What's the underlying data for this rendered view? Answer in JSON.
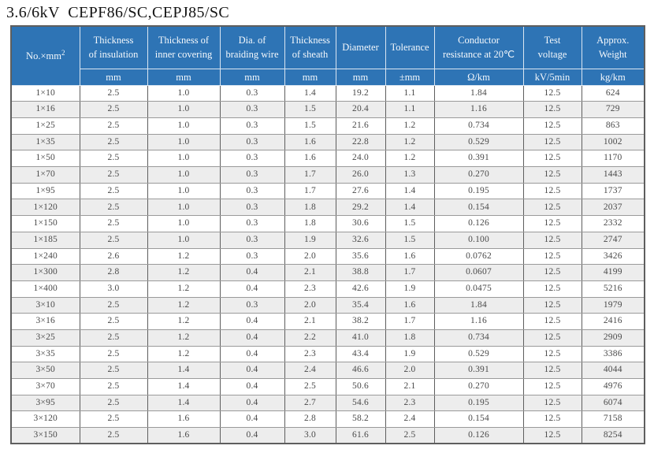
{
  "page_title": "3.6/6kV  CEPF86/SC,CEPJ85/SC",
  "colors": {
    "header_bg": "#2e74b5",
    "header_text": "#f4f8fc",
    "stripe_bg": "#ededed",
    "row_bg": "#ffffff",
    "body_text": "#4a4a4a",
    "title_text": "#141414",
    "border_dark": "#5e5e5e",
    "border_light": "#9a9a9a"
  },
  "table": {
    "no_header": {
      "base": "No.×mm",
      "sup": "2"
    },
    "columns": [
      "Thickness\nof insulation",
      "Thickness of\ninner covering",
      "Dia. of\nbraiding wire",
      "Thickness\nof sheath",
      "Diameter",
      "Tolerance",
      "Conductor\nresistance at 20℃",
      "Test\nvoltage",
      "Approx.\nWeight"
    ],
    "units": [
      "mm",
      "mm",
      "mm",
      "mm",
      "mm",
      "±mm",
      "Ω/km",
      "kV/5min",
      "kg/km"
    ],
    "rows": [
      [
        "1×10",
        "2.5",
        "1.0",
        "0.3",
        "1.4",
        "19.2",
        "1.1",
        "1.84",
        "12.5",
        "624"
      ],
      [
        "1×16",
        "2.5",
        "1.0",
        "0.3",
        "1.5",
        "20.4",
        "1.1",
        "1.16",
        "12.5",
        "729"
      ],
      [
        "1×25",
        "2.5",
        "1.0",
        "0.3",
        "1.5",
        "21.6",
        "1.2",
        "0.734",
        "12.5",
        "863"
      ],
      [
        "1×35",
        "2.5",
        "1.0",
        "0.3",
        "1.6",
        "22.8",
        "1.2",
        "0.529",
        "12.5",
        "1002"
      ],
      [
        "1×50",
        "2.5",
        "1.0",
        "0.3",
        "1.6",
        "24.0",
        "1.2",
        "0.391",
        "12.5",
        "1170"
      ],
      [
        "1×70",
        "2.5",
        "1.0",
        "0.3",
        "1.7",
        "26.0",
        "1.3",
        "0.270",
        "12.5",
        "1443"
      ],
      [
        "1×95",
        "2.5",
        "1.0",
        "0.3",
        "1.7",
        "27.6",
        "1.4",
        "0.195",
        "12.5",
        "1737"
      ],
      [
        "1×120",
        "2.5",
        "1.0",
        "0.3",
        "1.8",
        "29.2",
        "1.4",
        "0.154",
        "12.5",
        "2037"
      ],
      [
        "1×150",
        "2.5",
        "1.0",
        "0.3",
        "1.8",
        "30.6",
        "1.5",
        "0.126",
        "12.5",
        "2332"
      ],
      [
        "1×185",
        "2.5",
        "1.0",
        "0.3",
        "1.9",
        "32.6",
        "1.5",
        "0.100",
        "12.5",
        "2747"
      ],
      [
        "1×240",
        "2.6",
        "1.2",
        "0.3",
        "2.0",
        "35.6",
        "1.6",
        "0.0762",
        "12.5",
        "3426"
      ],
      [
        "1×300",
        "2.8",
        "1.2",
        "0.4",
        "2.1",
        "38.8",
        "1.7",
        "0.0607",
        "12.5",
        "4199"
      ],
      [
        "1×400",
        "3.0",
        "1.2",
        "0.4",
        "2.3",
        "42.6",
        "1.9",
        "0.0475",
        "12.5",
        "5216"
      ],
      [
        "3×10",
        "2.5",
        "1.2",
        "0.3",
        "2.0",
        "35.4",
        "1.6",
        "1.84",
        "12.5",
        "1979"
      ],
      [
        "3×16",
        "2.5",
        "1.2",
        "0.4",
        "2.1",
        "38.2",
        "1.7",
        "1.16",
        "12.5",
        "2416"
      ],
      [
        "3×25",
        "2.5",
        "1.2",
        "0.4",
        "2.2",
        "41.0",
        "1.8",
        "0.734",
        "12.5",
        "2909"
      ],
      [
        "3×35",
        "2.5",
        "1.2",
        "0.4",
        "2.3",
        "43.4",
        "1.9",
        "0.529",
        "12.5",
        "3386"
      ],
      [
        "3×50",
        "2.5",
        "1.4",
        "0.4",
        "2.4",
        "46.6",
        "2.0",
        "0.391",
        "12.5",
        "4044"
      ],
      [
        "3×70",
        "2.5",
        "1.4",
        "0.4",
        "2.5",
        "50.6",
        "2.1",
        "0.270",
        "12.5",
        "4976"
      ],
      [
        "3×95",
        "2.5",
        "1.4",
        "0.4",
        "2.7",
        "54.6",
        "2.3",
        "0.195",
        "12.5",
        "6074"
      ],
      [
        "3×120",
        "2.5",
        "1.6",
        "0.4",
        "2.8",
        "58.2",
        "2.4",
        "0.154",
        "12.5",
        "7158"
      ],
      [
        "3×150",
        "2.5",
        "1.6",
        "0.4",
        "3.0",
        "61.6",
        "2.5",
        "0.126",
        "12.5",
        "8254"
      ]
    ]
  }
}
